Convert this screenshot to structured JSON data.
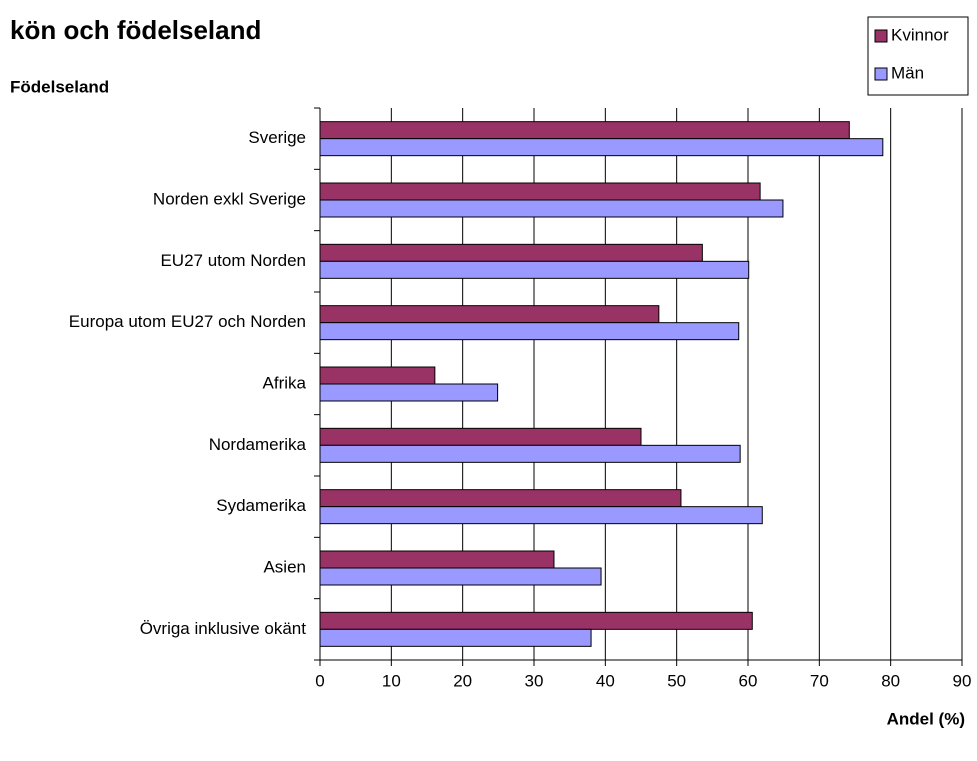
{
  "chart_data": {
    "type": "hbar",
    "title": "kön och födelseland",
    "y_label": "Födelseland",
    "x_label": "Andel (%)",
    "categories": [
      "Sverige",
      "Norden exkl Sverige",
      "EU27 utom Norden",
      "Europa utom EU27 och Norden",
      "Afrika",
      "Nordamerika",
      "Sydamerika",
      "Asien",
      "Övriga inklusive okänt"
    ],
    "series": [
      {
        "name": "Kvinnor",
        "color": "#993366",
        "values": [
          74.2,
          61.7,
          53.6,
          47.5,
          16.1,
          45.0,
          50.6,
          32.8,
          60.6
        ]
      },
      {
        "name": "Män",
        "color": "#9999ff",
        "values": [
          78.9,
          64.9,
          60.1,
          58.7,
          24.9,
          58.9,
          62.0,
          39.4,
          38.0
        ]
      }
    ],
    "xlim": [
      0,
      90
    ],
    "xticks": [
      0,
      10,
      20,
      30,
      40,
      50,
      60,
      70,
      80,
      90
    ],
    "grid": true,
    "legend": "top-right"
  }
}
